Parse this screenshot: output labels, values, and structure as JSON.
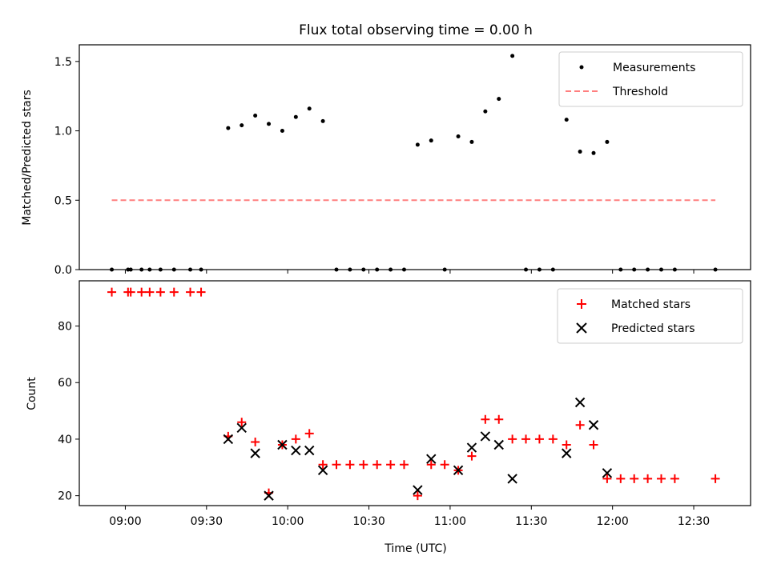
{
  "chart_data": [
    {
      "type": "scatter",
      "title": "Flux total observing time = 0.00 h",
      "ylabel": "Matched/Predicted stars",
      "xlabel": "",
      "ylim": [
        0,
        1.62
      ],
      "yticks": [
        0.0,
        0.5,
        1.0,
        1.5
      ],
      "ytick_labels": [
        "0.0",
        "0.5",
        "1.0",
        "1.5"
      ],
      "grid": false,
      "legend_position": "top-right",
      "series": [
        {
          "name": "Measurements",
          "marker": "dot",
          "color": "#000000",
          "points": [
            [
              "08:55",
              0.0
            ],
            [
              "09:01",
              0.0
            ],
            [
              "09:02",
              0.0
            ],
            [
              "09:06",
              0.0
            ],
            [
              "09:09",
              0.0
            ],
            [
              "09:13",
              0.0
            ],
            [
              "09:18",
              0.0
            ],
            [
              "09:24",
              0.0
            ],
            [
              "09:28",
              0.0
            ],
            [
              "09:38",
              1.02
            ],
            [
              "09:43",
              1.04
            ],
            [
              "09:48",
              1.11
            ],
            [
              "09:53",
              1.05
            ],
            [
              "09:58",
              1.0
            ],
            [
              "10:03",
              1.1
            ],
            [
              "10:08",
              1.16
            ],
            [
              "10:13",
              1.07
            ],
            [
              "10:18",
              0.0
            ],
            [
              "10:23",
              0.0
            ],
            [
              "10:28",
              0.0
            ],
            [
              "10:33",
              0.0
            ],
            [
              "10:38",
              0.0
            ],
            [
              "10:43",
              0.0
            ],
            [
              "10:48",
              0.9
            ],
            [
              "10:53",
              0.93
            ],
            [
              "10:58",
              0.0
            ],
            [
              "11:03",
              0.96
            ],
            [
              "11:08",
              0.92
            ],
            [
              "11:13",
              1.14
            ],
            [
              "11:18",
              1.23
            ],
            [
              "11:23",
              1.54
            ],
            [
              "11:28",
              0.0
            ],
            [
              "11:33",
              0.0
            ],
            [
              "11:38",
              0.0
            ],
            [
              "11:43",
              1.08
            ],
            [
              "11:48",
              0.85
            ],
            [
              "11:53",
              0.84
            ],
            [
              "11:58",
              0.92
            ],
            [
              "12:03",
              0.0
            ],
            [
              "12:08",
              0.0
            ],
            [
              "12:13",
              0.0
            ],
            [
              "12:18",
              0.0
            ],
            [
              "12:23",
              0.0
            ],
            [
              "12:38",
              0.0
            ]
          ]
        },
        {
          "name": "Threshold",
          "line_style": "dashed",
          "color": "#ff7f7f",
          "x": [
            "08:55",
            "12:38"
          ],
          "values": [
            0.5,
            0.5
          ]
        }
      ]
    },
    {
      "type": "scatter",
      "title": "",
      "ylabel": "Count",
      "xlabel": "Time (UTC)",
      "ylim": [
        16.5,
        96
      ],
      "yticks": [
        20,
        40,
        60,
        80
      ],
      "ytick_labels": [
        "20",
        "40",
        "60",
        "80"
      ],
      "xlim": [
        "08:43",
        "12:51"
      ],
      "xticks": [
        "09:00",
        "09:30",
        "10:00",
        "10:30",
        "11:00",
        "11:30",
        "12:00",
        "12:30"
      ],
      "xtick_labels": [
        "09:00",
        "09:30",
        "10:00",
        "10:30",
        "11:00",
        "11:30",
        "12:00",
        "12:30"
      ],
      "grid": false,
      "legend_position": "top-right",
      "series": [
        {
          "name": "Matched stars",
          "marker": "plus",
          "color": "#ff0000",
          "points": [
            [
              "08:55",
              92
            ],
            [
              "09:01",
              92
            ],
            [
              "09:02",
              92
            ],
            [
              "09:06",
              92
            ],
            [
              "09:09",
              92
            ],
            [
              "09:13",
              92
            ],
            [
              "09:18",
              92
            ],
            [
              "09:24",
              92
            ],
            [
              "09:28",
              92
            ],
            [
              "09:38",
              41
            ],
            [
              "09:43",
              46
            ],
            [
              "09:48",
              39
            ],
            [
              "09:53",
              21
            ],
            [
              "09:58",
              38
            ],
            [
              "10:03",
              40
            ],
            [
              "10:08",
              42
            ],
            [
              "10:13",
              31
            ],
            [
              "10:18",
              31
            ],
            [
              "10:23",
              31
            ],
            [
              "10:28",
              31
            ],
            [
              "10:33",
              31
            ],
            [
              "10:38",
              31
            ],
            [
              "10:43",
              31
            ],
            [
              "10:48",
              20
            ],
            [
              "10:53",
              31
            ],
            [
              "10:58",
              31
            ],
            [
              "11:03",
              29
            ],
            [
              "11:08",
              34
            ],
            [
              "11:13",
              47
            ],
            [
              "11:18",
              47
            ],
            [
              "11:23",
              40
            ],
            [
              "11:28",
              40
            ],
            [
              "11:33",
              40
            ],
            [
              "11:38",
              40
            ],
            [
              "11:43",
              38
            ],
            [
              "11:48",
              45
            ],
            [
              "11:53",
              38
            ],
            [
              "11:58",
              26
            ],
            [
              "12:03",
              26
            ],
            [
              "12:08",
              26
            ],
            [
              "12:13",
              26
            ],
            [
              "12:18",
              26
            ],
            [
              "12:23",
              26
            ],
            [
              "12:38",
              26
            ]
          ]
        },
        {
          "name": "Predicted stars",
          "marker": "x",
          "color": "#000000",
          "points": [
            [
              "09:38",
              40
            ],
            [
              "09:43",
              44
            ],
            [
              "09:48",
              35
            ],
            [
              "09:53",
              20
            ],
            [
              "09:58",
              38
            ],
            [
              "10:03",
              36
            ],
            [
              "10:08",
              36
            ],
            [
              "10:13",
              29
            ],
            [
              "10:48",
              22
            ],
            [
              "10:53",
              33
            ],
            [
              "11:03",
              29
            ],
            [
              "11:08",
              37
            ],
            [
              "11:13",
              41
            ],
            [
              "11:18",
              38
            ],
            [
              "11:23",
              26
            ],
            [
              "11:43",
              35
            ],
            [
              "11:48",
              53
            ],
            [
              "11:53",
              45
            ],
            [
              "11:58",
              28
            ]
          ]
        }
      ]
    }
  ]
}
